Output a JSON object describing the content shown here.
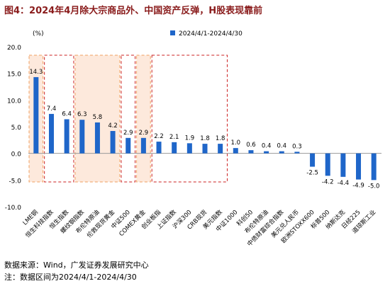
{
  "page": {
    "title": "图4：2024年4月除大宗商品外、中国资产反弹，H股表现靠前",
    "source": "数据来源：Wind，广发证券发展研究中心",
    "note": "注：数据区间为2024/4/1-2024/4/30"
  },
  "chart_data": {
    "type": "bar",
    "unit_label": "(%)",
    "legend": "2024/4/1-2024/4/30",
    "legend_position": "top",
    "ylim": [
      -10,
      20
    ],
    "yticks": [
      -10,
      -5,
      0,
      5,
      10,
      15,
      20
    ],
    "ytick_labels": [
      "-10.0",
      "-5.0",
      "0.0",
      "5.0",
      "10.0",
      "15.0",
      "20.0"
    ],
    "grid": false,
    "bar_color": "#1f66c9",
    "categories": [
      "LME铜",
      "恒生科技指数",
      "恒生指数",
      "螺纹钢指数",
      "布伦特原油",
      "伦敦现货黄金",
      "中证500",
      "COMEX黄金",
      "创业板指",
      "上证指数",
      "沪深300",
      "CRB现货",
      "美元指数",
      "中证1000",
      "科创50",
      "布伦特原油",
      "中债财富综合指数",
      "美元兑人民币",
      "欧洲STOXX600",
      "标普500",
      "纳斯达克",
      "日经225",
      "道琼斯工业"
    ],
    "values": [
      14.3,
      7.4,
      6.4,
      6.3,
      5.8,
      4.2,
      2.9,
      2.9,
      2.2,
      2.1,
      1.9,
      1.8,
      1.8,
      1.0,
      0.6,
      0.4,
      0.4,
      0.3,
      -2.5,
      -4.2,
      -4.4,
      -4.9,
      -5.0
    ],
    "value_labels": [
      "14.3",
      "7.4",
      "6.4",
      "6.3",
      "5.8",
      "4.2",
      "2.9",
      "2.9",
      "2.2",
      "2.1",
      "1.9",
      "1.8",
      "1.8",
      "1.0",
      "0.6",
      "0.4",
      "0.4",
      "0.3",
      "-2.5",
      "-4.2",
      "-4.4",
      "-4.9",
      "-5.0"
    ],
    "highlight_groups": [
      {
        "start": 0,
        "end": 0,
        "style": "orange-dashed-filled"
      },
      {
        "start": 1,
        "end": 2,
        "style": "red-dashed"
      },
      {
        "start": 3,
        "end": 5,
        "style": "orange-dashed-filled"
      },
      {
        "start": 6,
        "end": 6,
        "style": "red-dashed"
      },
      {
        "start": 7,
        "end": 7,
        "style": "orange-dashed-filled"
      },
      {
        "start": 8,
        "end": 12,
        "style": "red-dashed"
      }
    ],
    "colors": {
      "orange": "#f0a060",
      "orange_fill": "#fde9dc",
      "red": "#cc2020"
    }
  }
}
